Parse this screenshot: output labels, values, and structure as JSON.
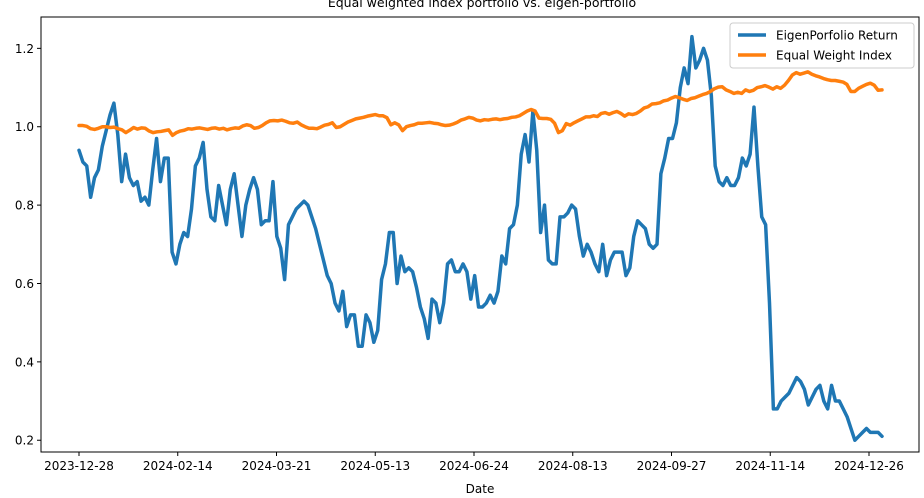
{
  "chart_data": {
    "type": "line",
    "title": "Equal weighted index portfolio vs. eigen-portfolio",
    "xlabel": "Date",
    "ylabel": "",
    "x_tick_labels": [
      "2023-12-28",
      "2024-02-14",
      "2024-03-21",
      "2024-05-13",
      "2024-06-24",
      "2024-08-13",
      "2024-09-27",
      "2024-11-14",
      "2024-12-26"
    ],
    "y_ticks": [
      0.2,
      0.4,
      0.6,
      0.8,
      1.0,
      1.2
    ],
    "y_tick_labels": [
      "0.2",
      "0.4",
      "0.6",
      "0.8",
      "1.0",
      "1.2"
    ],
    "ylim": [
      0.17,
      1.28
    ],
    "xlim": [
      -6,
      257
    ],
    "grid": false,
    "legend_position": "top-right",
    "series": [
      {
        "name": "EigenPorfolio Return",
        "color": "#1f77b4",
        "values": [
          0.94,
          0.91,
          0.9,
          0.82,
          0.87,
          0.89,
          0.95,
          0.99,
          1.03,
          1.06,
          0.98,
          0.86,
          0.93,
          0.87,
          0.85,
          0.86,
          0.81,
          0.82,
          0.8,
          0.89,
          0.97,
          0.86,
          0.92,
          0.92,
          0.68,
          0.65,
          0.7,
          0.73,
          0.72,
          0.79,
          0.9,
          0.92,
          0.96,
          0.84,
          0.77,
          0.76,
          0.85,
          0.8,
          0.75,
          0.84,
          0.88,
          0.8,
          0.72,
          0.8,
          0.84,
          0.87,
          0.84,
          0.75,
          0.76,
          0.76,
          0.86,
          0.72,
          0.69,
          0.61,
          0.75,
          0.77,
          0.79,
          0.8,
          0.81,
          0.8,
          0.77,
          0.74,
          0.7,
          0.66,
          0.62,
          0.6,
          0.55,
          0.53,
          0.58,
          0.49,
          0.52,
          0.52,
          0.44,
          0.44,
          0.52,
          0.5,
          0.45,
          0.48,
          0.61,
          0.65,
          0.73,
          0.73,
          0.6,
          0.67,
          0.63,
          0.64,
          0.63,
          0.59,
          0.54,
          0.51,
          0.46,
          0.56,
          0.55,
          0.5,
          0.55,
          0.65,
          0.66,
          0.63,
          0.63,
          0.65,
          0.63,
          0.56,
          0.62,
          0.54,
          0.54,
          0.55,
          0.57,
          0.55,
          0.58,
          0.67,
          0.65,
          0.74,
          0.75,
          0.8,
          0.93,
          0.98,
          0.91,
          1.04,
          0.94,
          0.73,
          0.8,
          0.66,
          0.65,
          0.65,
          0.77,
          0.77,
          0.78,
          0.8,
          0.79,
          0.72,
          0.67,
          0.7,
          0.68,
          0.65,
          0.63,
          0.7,
          0.62,
          0.66,
          0.68,
          0.68,
          0.68,
          0.62,
          0.64,
          0.72,
          0.76,
          0.75,
          0.74,
          0.7,
          0.69,
          0.7,
          0.88,
          0.92,
          0.97,
          0.97,
          1.01,
          1.1,
          1.15,
          1.11,
          1.23,
          1.15,
          1.17,
          1.2,
          1.17,
          1.08,
          0.9,
          0.86,
          0.85,
          0.87,
          0.85,
          0.85,
          0.87,
          0.92,
          0.9,
          0.93,
          1.05,
          0.9,
          0.77,
          0.75,
          0.55,
          0.28,
          0.28,
          0.3,
          0.31,
          0.32,
          0.34,
          0.36,
          0.35,
          0.33,
          0.29,
          0.31,
          0.33,
          0.34,
          0.3,
          0.28,
          0.34,
          0.3,
          0.3,
          0.28,
          0.26,
          0.23,
          0.2,
          0.21,
          0.22,
          0.23,
          0.22,
          0.22,
          0.22,
          0.21
        ],
        "data_range_index": [
          0,
          224
        ]
      },
      {
        "name": "Equal Weight Index",
        "color": "#ff7f0e",
        "values": [
          1.003,
          1.003,
          1.001,
          0.995,
          0.993,
          0.996,
          1.0,
          1.0,
          0.998,
          0.999,
          0.995,
          0.992,
          0.985,
          0.991,
          0.998,
          0.994,
          0.997,
          0.996,
          0.989,
          0.985,
          0.987,
          0.988,
          0.99,
          0.992,
          0.978,
          0.985,
          0.989,
          0.991,
          0.995,
          0.994,
          0.996,
          0.997,
          0.995,
          0.993,
          0.996,
          0.997,
          0.994,
          0.996,
          0.992,
          0.995,
          0.997,
          0.996,
          1.002,
          1.005,
          1.003,
          0.996,
          0.998,
          1.003,
          1.01,
          1.015,
          1.016,
          1.015,
          1.017,
          1.014,
          1.01,
          1.009,
          1.012,
          1.005,
          1.0,
          0.996,
          0.996,
          0.995,
          0.999,
          1.004,
          1.006,
          1.01,
          0.998,
          1.0,
          1.006,
          1.012,
          1.016,
          1.02,
          1.022,
          1.024,
          1.027,
          1.029,
          1.031,
          1.028,
          1.028,
          1.023,
          1.005,
          1.01,
          1.005,
          0.99,
          1.0,
          1.003,
          1.005,
          1.009,
          1.009,
          1.01,
          1.011,
          1.009,
          1.008,
          1.005,
          1.003,
          1.004,
          1.007,
          1.011,
          1.017,
          1.02,
          1.024,
          1.022,
          1.017,
          1.015,
          1.018,
          1.017,
          1.019,
          1.02,
          1.018,
          1.02,
          1.021,
          1.024,
          1.025,
          1.028,
          1.034,
          1.04,
          1.044,
          1.04,
          1.022,
          1.021,
          1.021,
          1.019,
          1.009,
          0.985,
          0.99,
          1.008,
          1.004,
          1.01,
          1.015,
          1.02,
          1.025,
          1.025,
          1.028,
          1.026,
          1.034,
          1.036,
          1.032,
          1.036,
          1.039,
          1.034,
          1.027,
          1.033,
          1.031,
          1.034,
          1.04,
          1.048,
          1.051,
          1.058,
          1.059,
          1.061,
          1.066,
          1.068,
          1.073,
          1.077,
          1.074,
          1.07,
          1.067,
          1.072,
          1.074,
          1.078,
          1.082,
          1.085,
          1.09,
          1.097,
          1.101,
          1.102,
          1.094,
          1.09,
          1.085,
          1.088,
          1.085,
          1.094,
          1.09,
          1.093,
          1.1,
          1.102,
          1.105,
          1.101,
          1.096,
          1.102,
          1.098,
          1.106,
          1.118,
          1.132,
          1.138,
          1.134,
          1.137,
          1.14,
          1.134,
          1.13,
          1.127,
          1.123,
          1.12,
          1.118,
          1.118,
          1.116,
          1.114,
          1.108,
          1.09,
          1.09,
          1.098,
          1.103,
          1.108,
          1.111,
          1.106,
          1.093,
          1.094
        ],
        "data_range_index": [
          0,
          224
        ]
      }
    ]
  }
}
